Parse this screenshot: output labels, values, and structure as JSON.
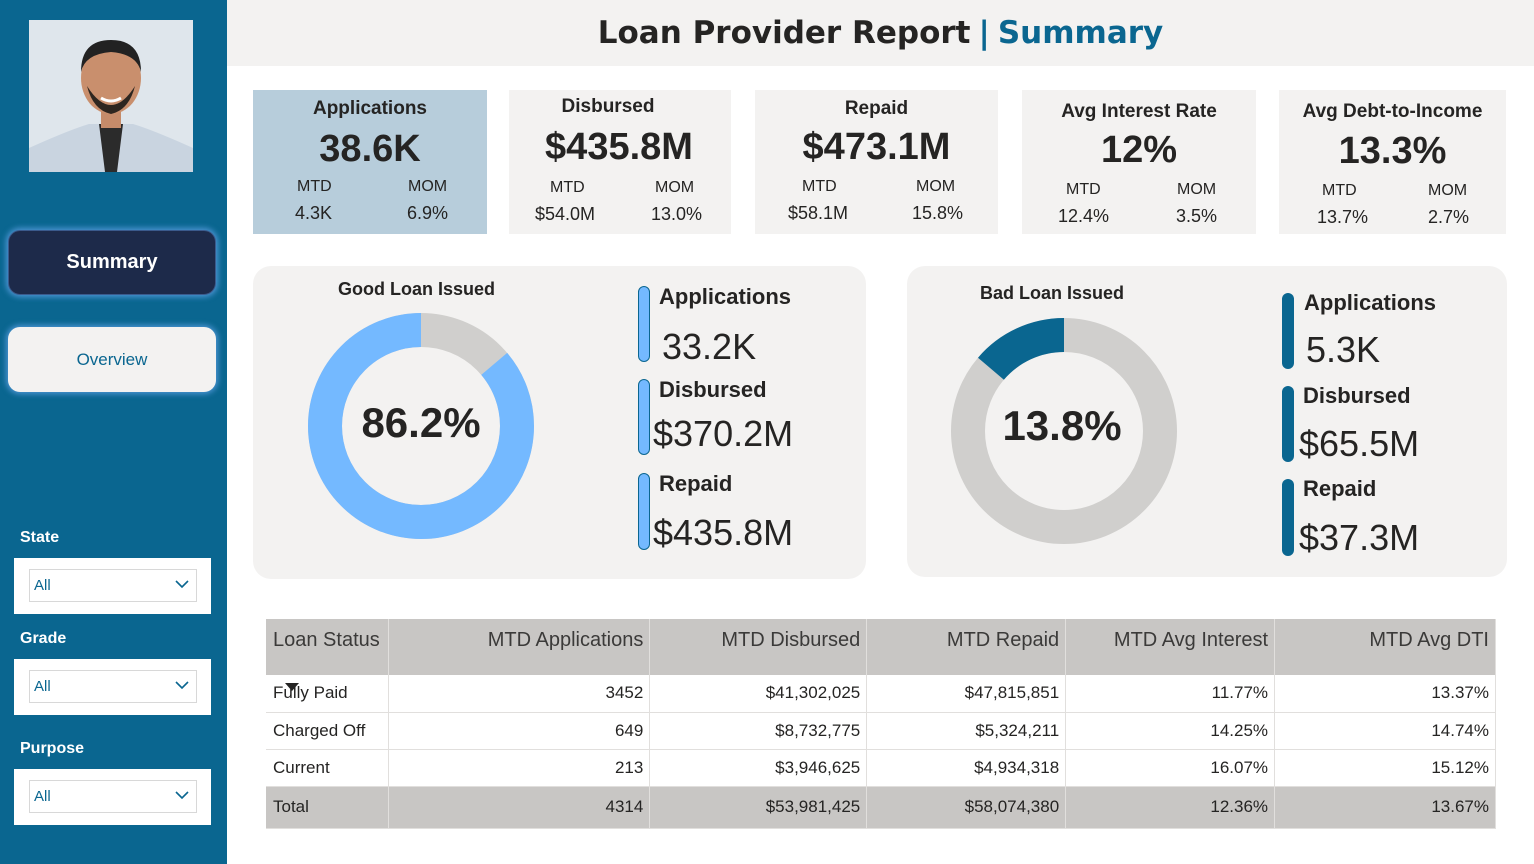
{
  "header": {
    "title": "Loan Provider Report",
    "separator": "|",
    "subtitle": "Summary"
  },
  "sidebar": {
    "nav": {
      "summary": "Summary",
      "overview": "Overview"
    },
    "filters": [
      {
        "label": "State",
        "value": "All"
      },
      {
        "label": "Grade",
        "value": "All"
      },
      {
        "label": "Purpose",
        "value": "All"
      }
    ]
  },
  "kpis": [
    {
      "title": "Applications",
      "value": "38.6K",
      "mtd_label": "MTD",
      "mom_label": "MOM",
      "mtd": "4.3K",
      "mom": "6.9%"
    },
    {
      "title": "Disbursed",
      "value": "$435.8M",
      "mtd_label": "MTD",
      "mom_label": "MOM",
      "mtd": "$54.0M",
      "mom": "13.0%"
    },
    {
      "title": "Repaid",
      "value": "$473.1M",
      "mtd_label": "MTD",
      "mom_label": "MOM",
      "mtd": "$58.1M",
      "mom": "15.8%"
    },
    {
      "title": "Avg Interest Rate",
      "value": "12%",
      "mtd_label": "MTD",
      "mom_label": "MOM",
      "mtd": "12.4%",
      "mom": "3.5%"
    },
    {
      "title": "Avg Debt-to-Income",
      "value": "13.3%",
      "mtd_label": "MTD",
      "mom_label": "MOM",
      "mtd": "13.7%",
      "mom": "2.7%"
    }
  ],
  "good_loan": {
    "title": "Good Loan Issued",
    "pct_label": "86.2%",
    "pct": 0.862,
    "color": "#74b9ff",
    "rest_color": "#d0cfcd",
    "stats": [
      {
        "label": "Applications",
        "value": "33.2K"
      },
      {
        "label": "Disbursed",
        "value": "$370.2M"
      },
      {
        "label": "Repaid",
        "value": "$435.8M"
      }
    ]
  },
  "bad_loan": {
    "title": "Bad Loan Issued",
    "pct_label": "13.8%",
    "pct": 0.138,
    "color": "#0a6690",
    "rest_color": "#d0cfcd",
    "stats": [
      {
        "label": "Applications",
        "value": "5.3K"
      },
      {
        "label": "Disbursed",
        "value": "$65.5M"
      },
      {
        "label": "Repaid",
        "value": "$37.3M"
      }
    ]
  },
  "table": {
    "headers": [
      "Loan Status",
      "MTD Applications",
      "MTD Disbursed",
      "MTD Repaid",
      "MTD Avg Interest",
      "MTD Avg DTI"
    ],
    "rows": [
      [
        "Fully Paid",
        "3452",
        "$41,302,025",
        "$47,815,851",
        "11.77%",
        "13.37%"
      ],
      [
        "Charged Off",
        "649",
        "$8,732,775",
        "$5,324,211",
        "14.25%",
        "14.74%"
      ],
      [
        "Current",
        "213",
        "$3,946,625",
        "$4,934,318",
        "16.07%",
        "15.12%"
      ]
    ],
    "total": [
      "Total",
      "4314",
      "$53,981,425",
      "$58,074,380",
      "12.36%",
      "13.67%"
    ]
  }
}
